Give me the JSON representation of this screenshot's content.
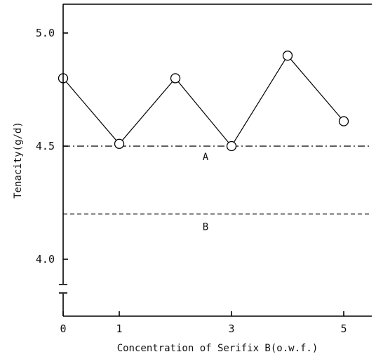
{
  "chart_data": {
    "type": "line",
    "title": "",
    "xlabel": "Concentration of Serifix B(o.w.f.)",
    "ylabel": "Tenacity(g/d)",
    "xlim": [
      0,
      5.5
    ],
    "ylim": [
      3.75,
      5.15
    ],
    "x_ticks": [
      0,
      1,
      3,
      5
    ],
    "x_tick_labels": [
      "0",
      "1",
      "3",
      "5"
    ],
    "y_ticks": [
      4.0,
      4.5,
      5.0
    ],
    "y_tick_labels": [
      "4.0",
      "4.5",
      "5.0"
    ],
    "axis_break": "y",
    "grid": false,
    "series": [
      {
        "x": [
          0,
          1,
          2,
          3,
          4,
          5
        ],
        "y": [
          4.8,
          4.51,
          4.8,
          4.5,
          4.9,
          4.61
        ],
        "marker": "open-circle",
        "color": "#000000"
      }
    ],
    "reference_lines": [
      {
        "label": "A",
        "y": 4.5,
        "style": "dash-dot"
      },
      {
        "label": "B",
        "y": 4.2,
        "style": "dashed"
      }
    ]
  }
}
